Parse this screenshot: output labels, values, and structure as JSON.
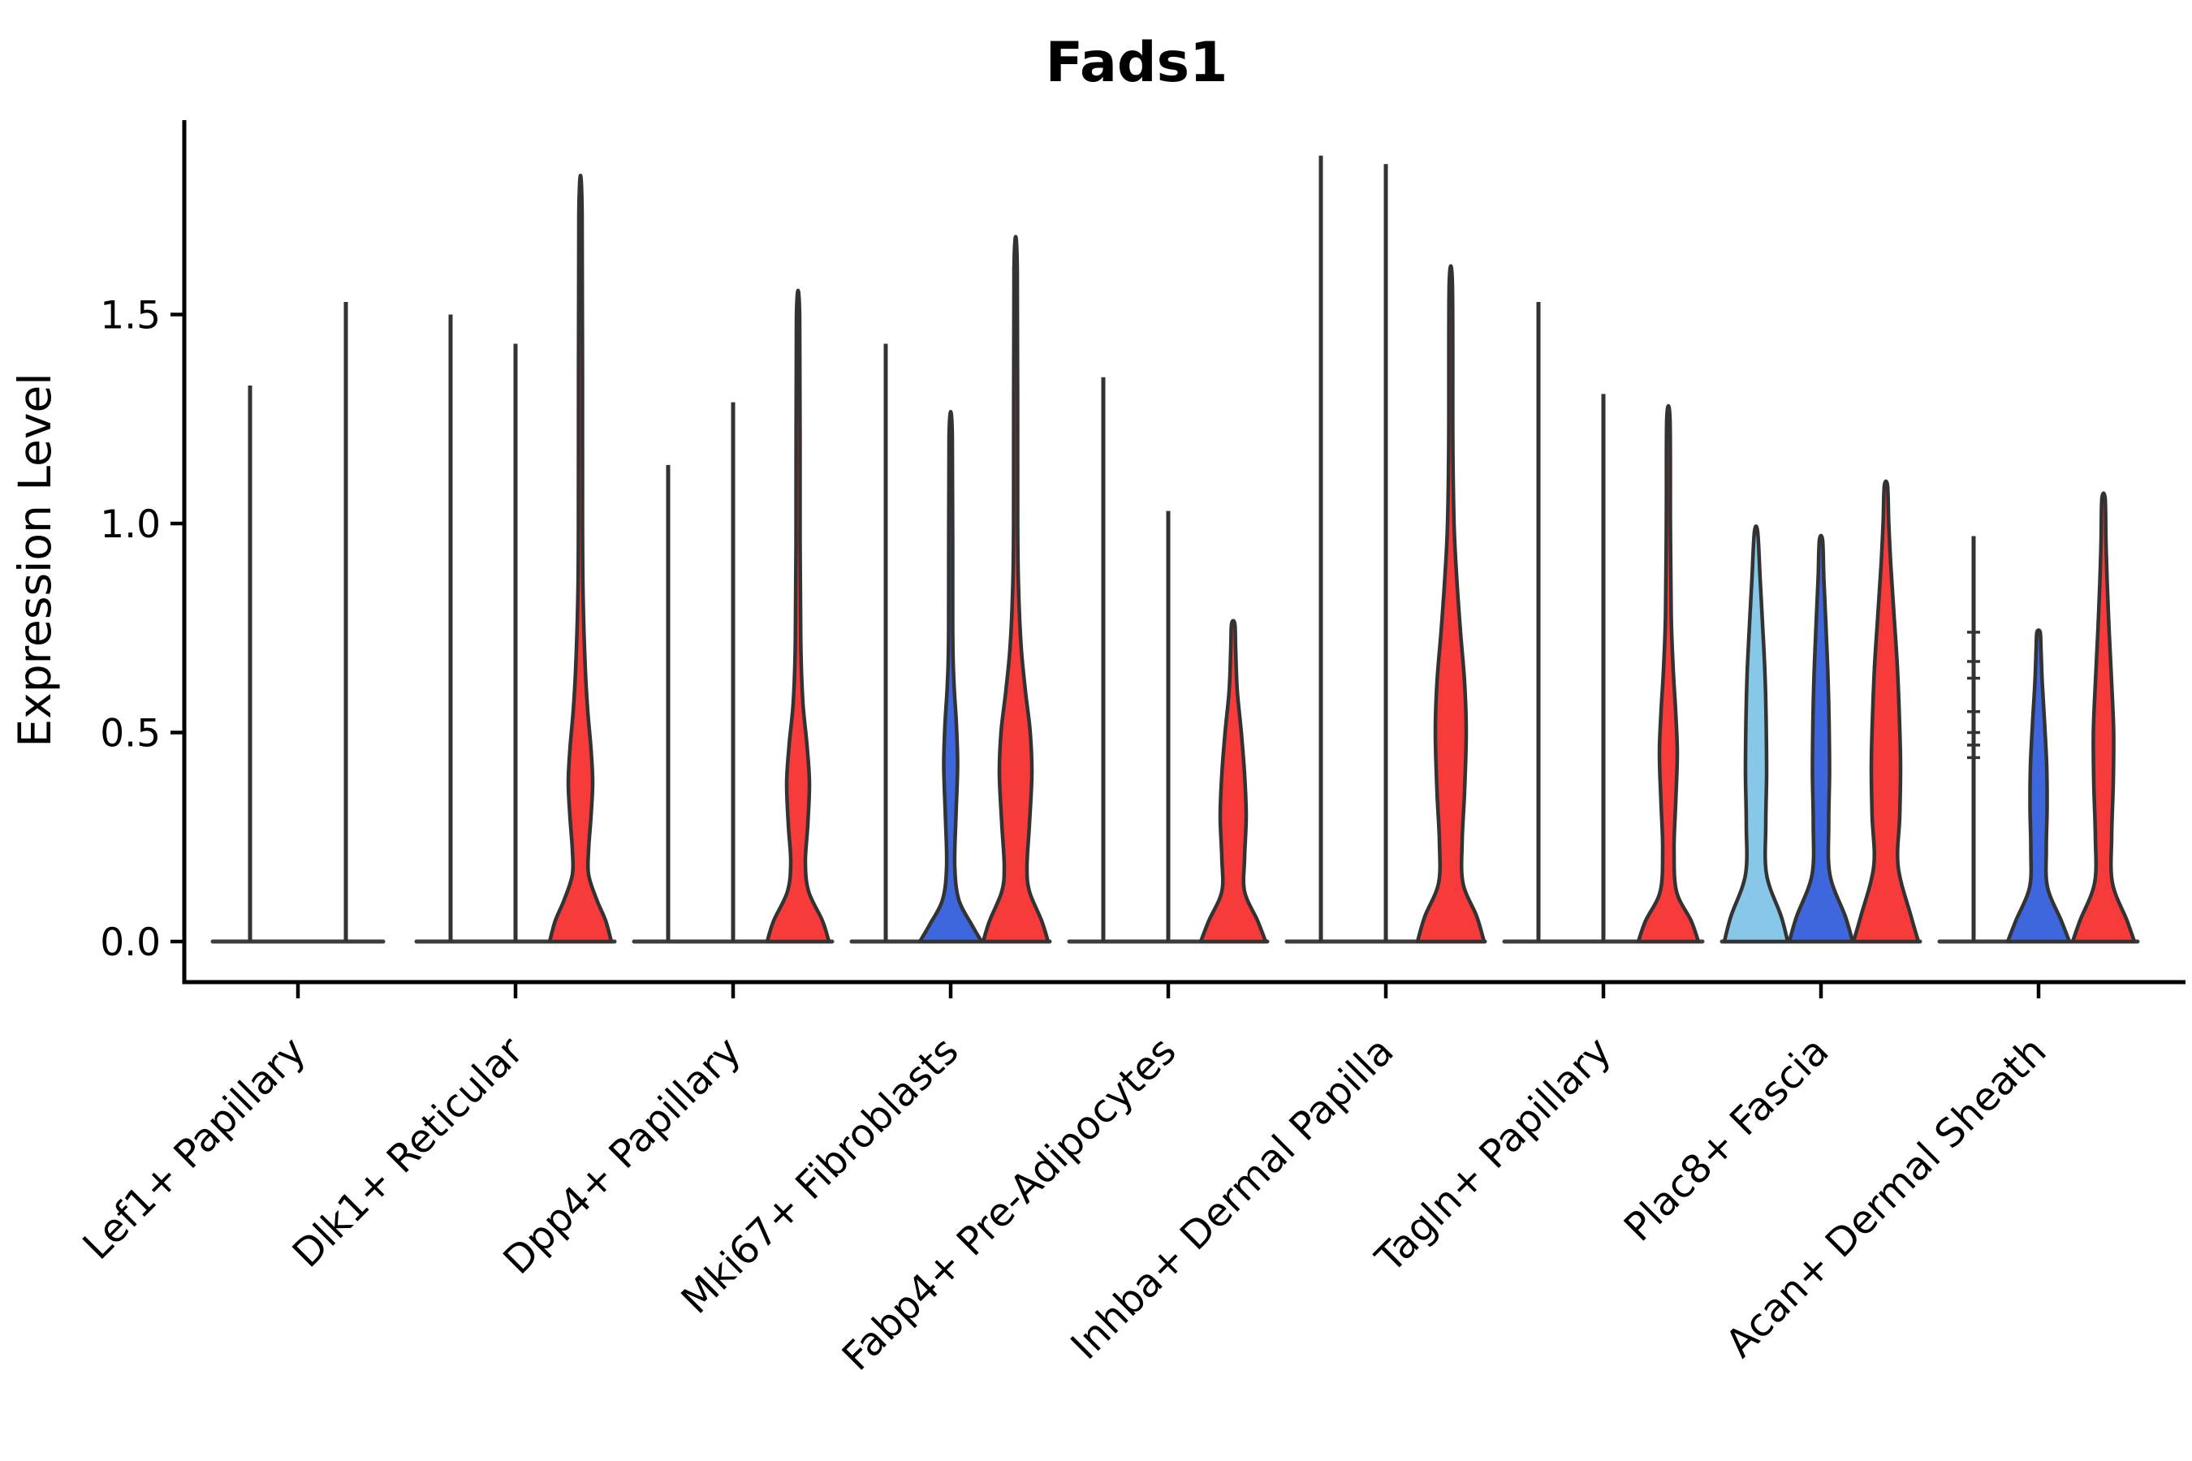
{
  "chart_data": {
    "type": "violin",
    "title": "Fads1",
    "xlabel": "",
    "ylabel": "Expression Level",
    "y_tick_labels": [
      "0.0",
      "0.5",
      "1.0",
      "1.5"
    ],
    "y_tick_values": [
      0.0,
      0.5,
      1.0,
      1.5
    ],
    "ylim": [
      -0.1,
      1.96
    ],
    "legend": "none",
    "grid": false,
    "palette": {
      "skyblue": "#87c8e8",
      "blue": "#3e66dd",
      "red": "#f73b3b",
      "outline": "#333333",
      "baseline": "#3d3d3d",
      "axis": "#000000"
    },
    "categories": [
      "Lef1+ Papillary",
      "Dlk1+ Reticular",
      "Dpp4+ Papillary",
      "Mki67+ Fibroblasts",
      "Fabp4+ Pre-Adipocytes",
      "Inhba+ Dermal Papilla",
      "Tagln+ Papillary",
      "Plac8+ Fascia",
      "Acan+ Dermal Sheath"
    ],
    "groups": [
      {
        "category": "Lef1+ Papillary",
        "baseline_halfspan": 105,
        "items": [
          {
            "kind": "stem",
            "offset": -59,
            "max": 1.33
          },
          {
            "kind": "stem",
            "offset": 59,
            "max": 1.53
          }
        ]
      },
      {
        "category": "Dlk1+ Reticular",
        "baseline_halfspan": 122,
        "items": [
          {
            "kind": "stem",
            "offset": -80,
            "max": 1.5
          },
          {
            "kind": "stem",
            "offset": 0,
            "max": 1.43
          },
          {
            "kind": "violin",
            "offset": 80,
            "color": "red",
            "max": 1.74,
            "profile": [
              [
                0,
                38
              ],
              [
                0.05,
                31
              ],
              [
                0.1,
                20
              ],
              [
                0.16,
                10
              ],
              [
                0.22,
                10
              ],
              [
                0.3,
                13
              ],
              [
                0.38,
                15
              ],
              [
                0.46,
                13
              ],
              [
                0.55,
                9
              ],
              [
                0.65,
                6
              ],
              [
                0.8,
                3.5
              ],
              [
                1.0,
                2.5
              ],
              [
                1.74,
                2
              ]
            ]
          }
        ]
      },
      {
        "category": "Dpp4+ Papillary",
        "baseline_halfspan": 122,
        "items": [
          {
            "kind": "stem",
            "offset": -80,
            "max": 1.14
          },
          {
            "kind": "stem",
            "offset": 0,
            "max": 1.29
          },
          {
            "kind": "violin",
            "offset": 80,
            "color": "red",
            "max": 1.49,
            "profile": [
              [
                0,
                38
              ],
              [
                0.05,
                30
              ],
              [
                0.12,
                13
              ],
              [
                0.19,
                9
              ],
              [
                0.28,
                12
              ],
              [
                0.38,
                14
              ],
              [
                0.47,
                11
              ],
              [
                0.57,
                6
              ],
              [
                0.7,
                3.5
              ],
              [
                0.95,
                2.5
              ],
              [
                1.49,
                2
              ]
            ]
          }
        ]
      },
      {
        "category": "Mki67+ Fibroblasts",
        "baseline_halfspan": 122,
        "items": [
          {
            "kind": "stem",
            "offset": -80,
            "max": 1.43
          },
          {
            "kind": "violin",
            "offset": 0,
            "color": "blue",
            "max": 1.21,
            "profile": [
              [
                0,
                38
              ],
              [
                0.04,
                26
              ],
              [
                0.1,
                10
              ],
              [
                0.18,
                5
              ],
              [
                0.3,
                6.5
              ],
              [
                0.42,
                8.5
              ],
              [
                0.52,
                7
              ],
              [
                0.62,
                4
              ],
              [
                0.75,
                2.5
              ],
              [
                1.21,
                2
              ]
            ]
          },
          {
            "kind": "violin",
            "offset": 80,
            "color": "red",
            "max": 1.61,
            "profile": [
              [
                0,
                40
              ],
              [
                0.05,
                32
              ],
              [
                0.12,
                17
              ],
              [
                0.18,
                14
              ],
              [
                0.28,
                17
              ],
              [
                0.4,
                20
              ],
              [
                0.5,
                18
              ],
              [
                0.6,
                12
              ],
              [
                0.7,
                7
              ],
              [
                0.82,
                4
              ],
              [
                1.0,
                2.5
              ],
              [
                1.61,
                2
              ]
            ]
          }
        ]
      },
      {
        "category": "Fabp4+ Pre-Adipocytes",
        "baseline_halfspan": 122,
        "items": [
          {
            "kind": "stem",
            "offset": -80,
            "max": 1.35
          },
          {
            "kind": "stem",
            "offset": 0,
            "max": 1.03
          },
          {
            "kind": "violin",
            "offset": 80,
            "color": "red",
            "max": 0.76,
            "profile": [
              [
                0,
                40
              ],
              [
                0.05,
                30
              ],
              [
                0.12,
                14
              ],
              [
                0.2,
                14
              ],
              [
                0.3,
                16
              ],
              [
                0.4,
                14
              ],
              [
                0.5,
                10
              ],
              [
                0.6,
                5
              ],
              [
                0.7,
                3
              ],
              [
                0.76,
                2
              ]
            ]
          }
        ]
      },
      {
        "category": "Inhba+ Dermal Papilla",
        "baseline_halfspan": 122,
        "items": [
          {
            "kind": "stem",
            "offset": -80,
            "max": 1.88
          },
          {
            "kind": "stem",
            "offset": 0,
            "max": 1.86
          },
          {
            "kind": "violin",
            "offset": 80,
            "color": "red",
            "max": 1.57,
            "profile": [
              [
                0,
                41
              ],
              [
                0.06,
                32
              ],
              [
                0.14,
                15
              ],
              [
                0.24,
                14
              ],
              [
                0.36,
                17
              ],
              [
                0.5,
                19
              ],
              [
                0.62,
                17
              ],
              [
                0.74,
                12
              ],
              [
                0.88,
                7
              ],
              [
                1.0,
                4
              ],
              [
                1.2,
                2.5
              ],
              [
                1.57,
                2
              ]
            ]
          }
        ]
      },
      {
        "category": "Tagln+ Papillary",
        "baseline_halfspan": 122,
        "items": [
          {
            "kind": "stem",
            "offset": -80,
            "max": 1.53
          },
          {
            "kind": "stem",
            "offset": 0,
            "max": 1.31
          },
          {
            "kind": "violin",
            "offset": 80,
            "color": "red",
            "max": 1.25,
            "profile": [
              [
                0,
                37
              ],
              [
                0.05,
                28
              ],
              [
                0.12,
                10
              ],
              [
                0.22,
                7
              ],
              [
                0.33,
                9
              ],
              [
                0.45,
                11
              ],
              [
                0.55,
                9
              ],
              [
                0.65,
                6
              ],
              [
                0.78,
                3.5
              ],
              [
                1.0,
                2.5
              ],
              [
                1.25,
                2
              ]
            ]
          }
        ]
      },
      {
        "category": "Plac8+ Fascia",
        "baseline_halfspan": 122,
        "items": [
          {
            "kind": "violin",
            "offset": -80,
            "color": "skyblue",
            "max": 0.98,
            "profile": [
              [
                0,
                39
              ],
              [
                0.06,
                31
              ],
              [
                0.16,
                13
              ],
              [
                0.28,
                12
              ],
              [
                0.4,
                13
              ],
              [
                0.52,
                12.5
              ],
              [
                0.64,
                11
              ],
              [
                0.76,
                8
              ],
              [
                0.87,
                5
              ],
              [
                0.98,
                2
              ]
            ]
          },
          {
            "kind": "violin",
            "offset": 0,
            "color": "blue",
            "max": 0.96,
            "profile": [
              [
                0,
                39
              ],
              [
                0.06,
                30
              ],
              [
                0.16,
                11
              ],
              [
                0.28,
                9.5
              ],
              [
                0.4,
                10.5
              ],
              [
                0.52,
                10
              ],
              [
                0.64,
                8.5
              ],
              [
                0.76,
                6
              ],
              [
                0.87,
                3.5
              ],
              [
                0.96,
                2
              ]
            ]
          },
          {
            "kind": "violin",
            "offset": 80,
            "color": "red",
            "max": 1.09,
            "profile": [
              [
                0,
                40
              ],
              [
                0.06,
                31
              ],
              [
                0.18,
                15
              ],
              [
                0.3,
                17
              ],
              [
                0.42,
                18
              ],
              [
                0.54,
                16.5
              ],
              [
                0.66,
                14
              ],
              [
                0.78,
                10
              ],
              [
                0.9,
                6
              ],
              [
                1.0,
                3.5
              ],
              [
                1.09,
                2
              ]
            ]
          }
        ]
      },
      {
        "category": "Acan+ Dermal Sheath",
        "baseline_halfspan": 122,
        "items": [
          {
            "kind": "stem",
            "offset": -80,
            "max": 0.97,
            "stem_ticks": [
              0.74,
              0.67,
              0.63,
              0.55,
              0.5,
              0.47,
              0.44
            ]
          },
          {
            "kind": "violin",
            "offset": 0,
            "color": "blue",
            "max": 0.74,
            "profile": [
              [
                0,
                38
              ],
              [
                0.05,
                28
              ],
              [
                0.13,
                11
              ],
              [
                0.22,
                9.5
              ],
              [
                0.32,
                10.5
              ],
              [
                0.42,
                10
              ],
              [
                0.52,
                7.5
              ],
              [
                0.62,
                4.5
              ],
              [
                0.7,
                3
              ],
              [
                0.74,
                2
              ]
            ]
          },
          {
            "kind": "violin",
            "offset": 80,
            "color": "red",
            "max": 1.06,
            "profile": [
              [
                0,
                38
              ],
              [
                0.05,
                29
              ],
              [
                0.14,
                11
              ],
              [
                0.25,
                10
              ],
              [
                0.38,
                12
              ],
              [
                0.5,
                12.5
              ],
              [
                0.62,
                10
              ],
              [
                0.74,
                7
              ],
              [
                0.86,
                4.5
              ],
              [
                0.96,
                3
              ],
              [
                1.06,
                2
              ]
            ]
          }
        ]
      }
    ]
  }
}
